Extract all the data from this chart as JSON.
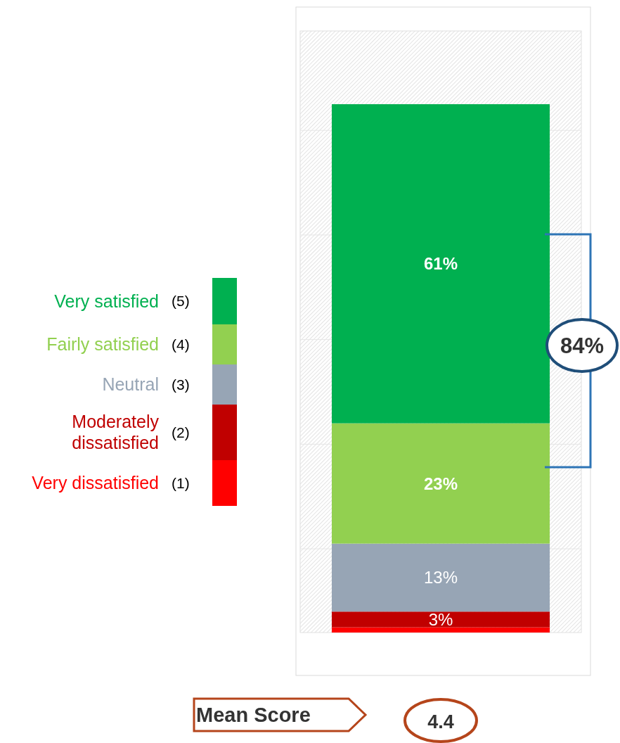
{
  "chart_data": {
    "type": "bar",
    "stacked": true,
    "categories": [
      null
    ],
    "series": [
      {
        "name": "Very dissatisfied (1)",
        "color": "#ff0000",
        "values": [
          1
        ],
        "value_labels": [
          null
        ]
      },
      {
        "name": "Moderately dissatisfied (2)",
        "color": "#c00000",
        "values": [
          3
        ],
        "value_labels": [
          "3%"
        ]
      },
      {
        "name": "Neutral (3)",
        "color": "#97a5b5",
        "values": [
          13
        ],
        "value_labels": [
          "13%"
        ]
      },
      {
        "name": "Fairly satisfied (4)",
        "color": "#92d050",
        "values": [
          23
        ],
        "value_labels": [
          "23%"
        ]
      },
      {
        "name": "Very satisfied (5)",
        "color": "#00b050",
        "values": [
          61
        ],
        "value_labels": [
          "61%"
        ]
      }
    ],
    "ylim": [
      0,
      115
    ],
    "yticks": [
      {
        "value": 16,
        "label": null
      },
      {
        "value": 36,
        "label": null
      },
      {
        "value": 56,
        "label": null
      },
      {
        "value": 76,
        "label": null
      },
      {
        "value": 96,
        "label": null
      }
    ],
    "grid": "y",
    "legend": "left",
    "annotations": [
      "84%",
      "Mean Score",
      "4.4"
    ]
  }
}
